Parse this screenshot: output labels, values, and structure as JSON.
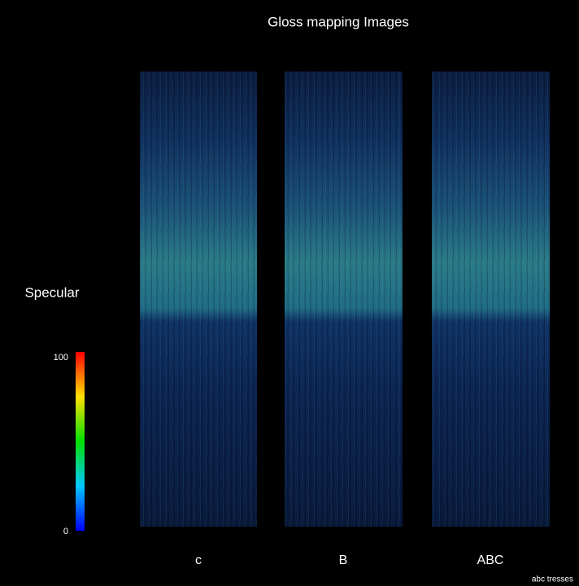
{
  "title": "Gloss mapping Images",
  "colorbar": {
    "label": "Specular",
    "max": 100,
    "min": 0
  },
  "panels": [
    {
      "label": "c"
    },
    {
      "label": "B"
    },
    {
      "label": "ABC"
    }
  ],
  "footer": "abc tresses"
}
